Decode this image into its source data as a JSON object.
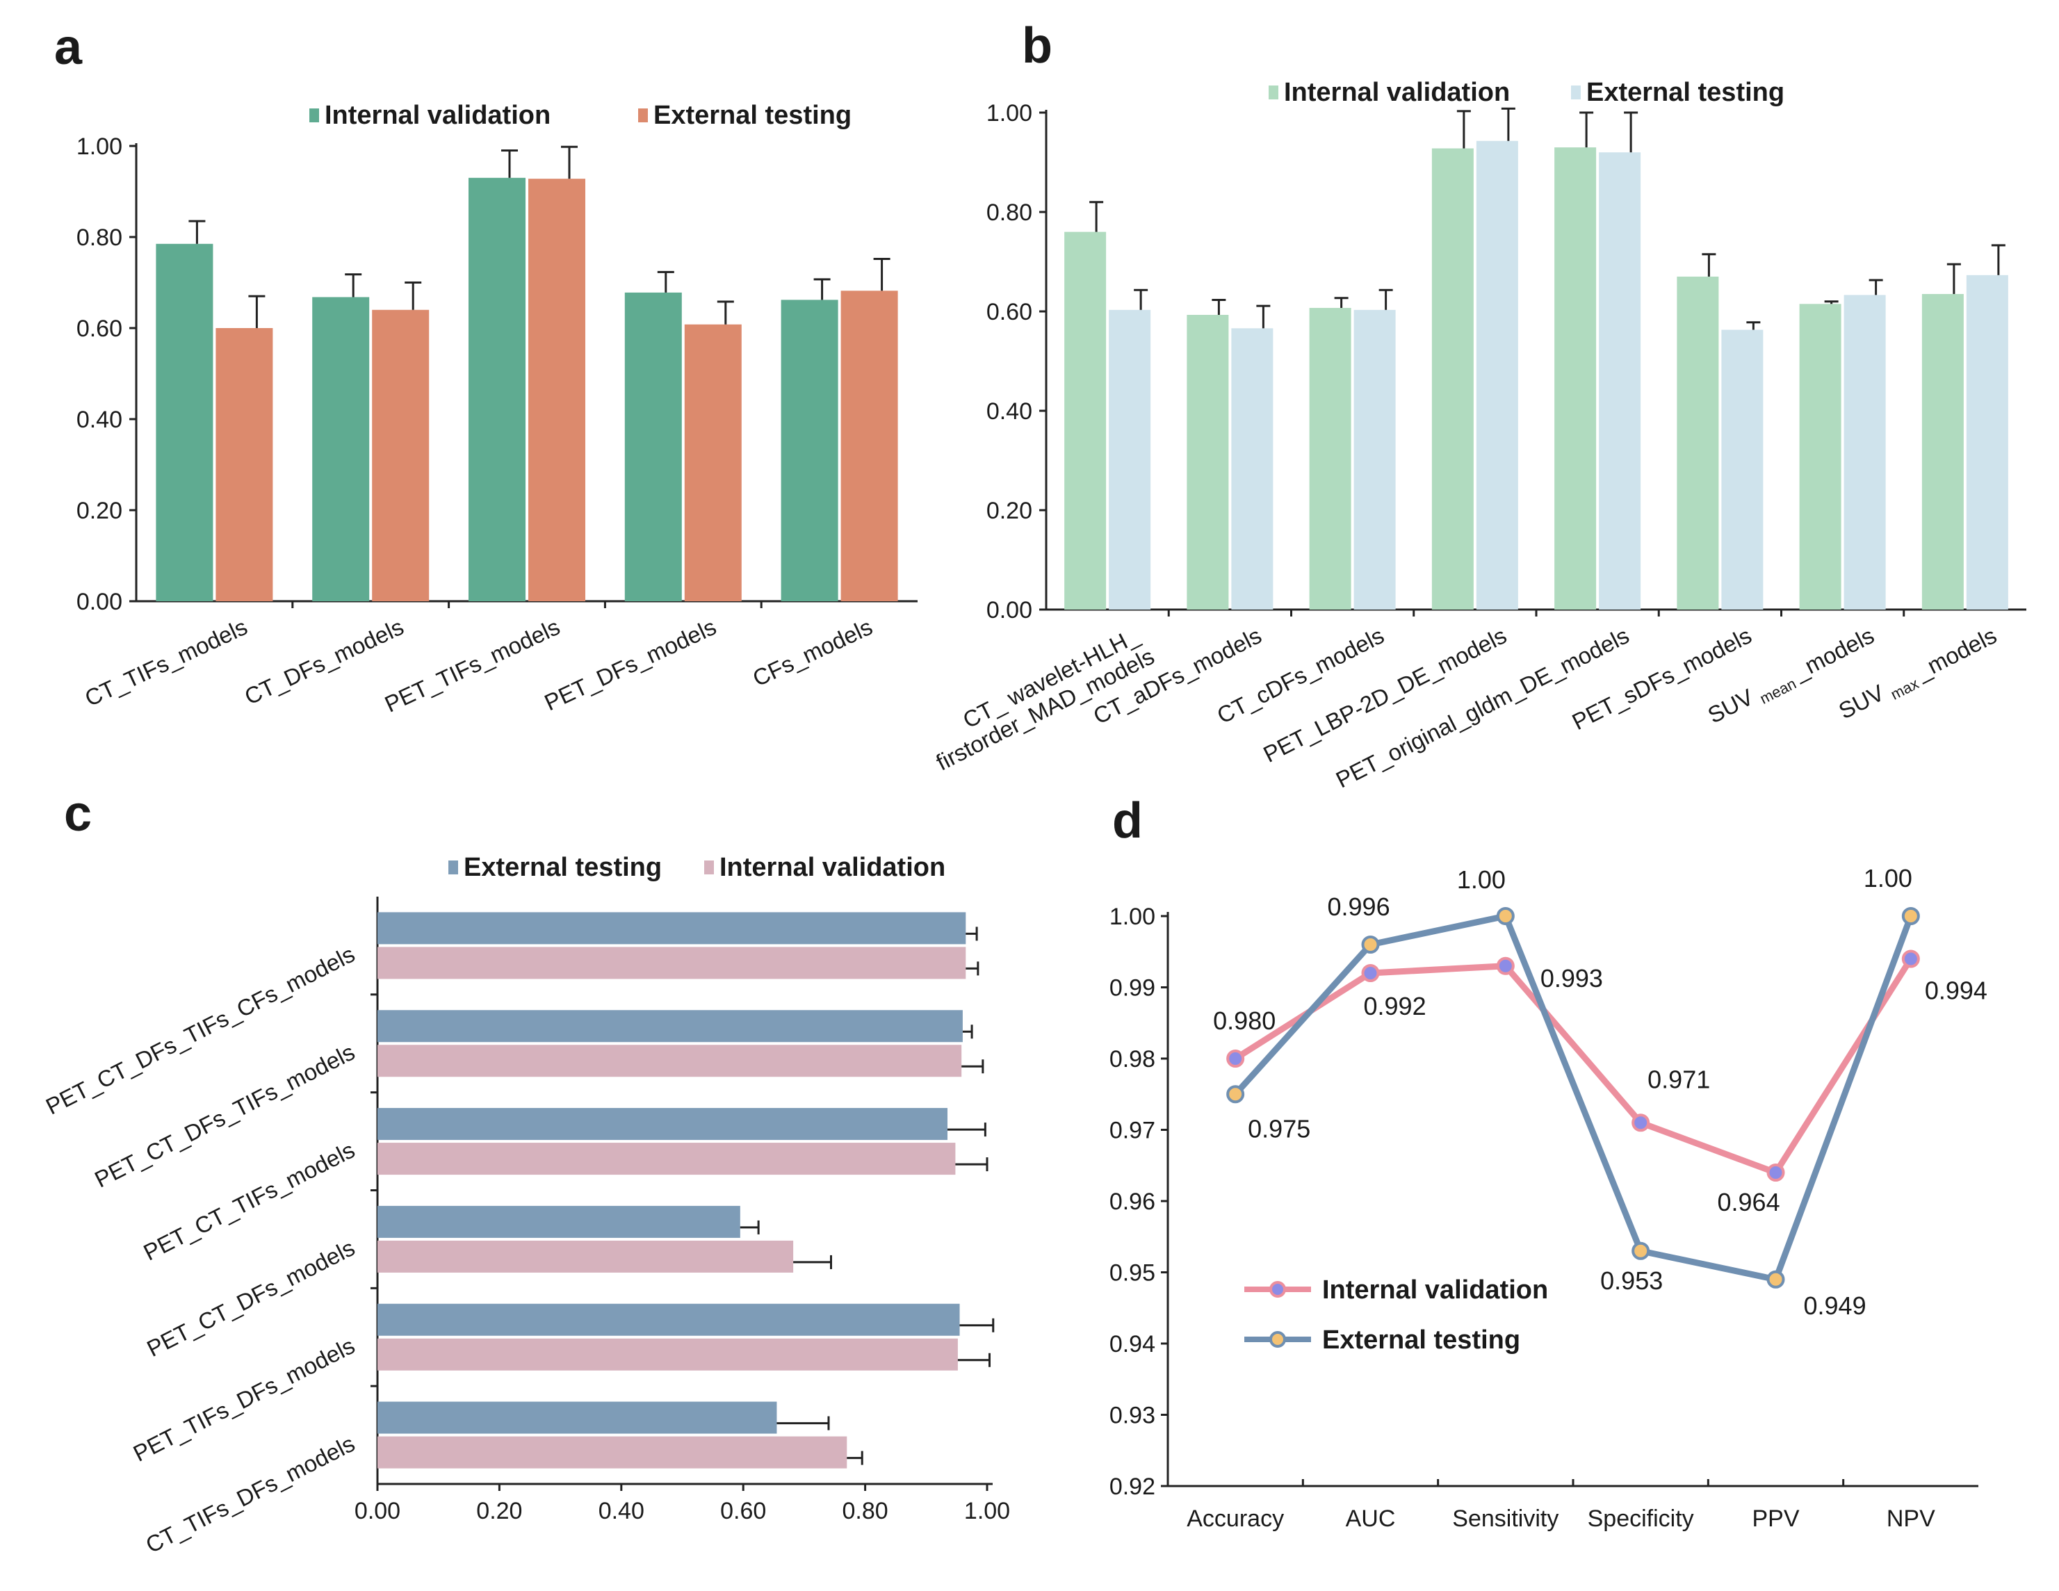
{
  "chart_data": [
    {
      "panel": "a",
      "type": "bar",
      "orientation": "vertical",
      "categories": [
        "CT_TIFs_models",
        "CT_DFs_models",
        "PET_TIFs_models",
        "PET_DFs_models",
        "CFs_models"
      ],
      "series": [
        {
          "name": "Internal validation",
          "color": "#5fab91",
          "values": [
            0.785,
            0.668,
            0.93,
            0.678,
            0.662
          ],
          "errors": [
            0.05,
            0.05,
            0.06,
            0.045,
            0.045
          ]
        },
        {
          "name": "External testing",
          "color": "#dc8a6d",
          "values": [
            0.6,
            0.64,
            0.928,
            0.608,
            0.682
          ],
          "errors": [
            0.07,
            0.06,
            0.07,
            0.05,
            0.07
          ]
        }
      ],
      "yticks": [
        "0.00",
        "0.20",
        "0.40",
        "0.60",
        "0.80",
        "1.00"
      ],
      "ylim": [
        0,
        1.0
      ],
      "xlabel": "",
      "ylabel": "",
      "legend": "top"
    },
    {
      "panel": "b",
      "type": "bar",
      "orientation": "vertical",
      "categories": [
        "CT_ wavelet-HLH_ firstorder_MAD_models",
        "CT_aDFs_models",
        "CT_cDFs_models",
        "PET_LBP-2D_DE_models",
        "PET_original_gldm_DE_models",
        "PET_sDFs_models",
        "SUV mean _models",
        "SUV max _models"
      ],
      "category_lines": [
        [
          {
            "t": "CT_ wavelet-HLH_"
          },
          {
            "t": "firstorder_MAD_models"
          }
        ],
        [
          {
            "t": "CT_aDFs_models"
          }
        ],
        [
          {
            "t": "CT_cDFs_models"
          }
        ],
        [
          {
            "t": "PET_LBP-2D_DE_models"
          }
        ],
        [
          {
            "t": "PET_original_gldm_DE_models"
          }
        ],
        [
          {
            "t": "PET_sDFs_models"
          }
        ],
        [
          {
            "t": "SUV",
            "sub": "mean",
            "tail": "_models"
          }
        ],
        [
          {
            "t": "SUV",
            "sub": "max",
            "tail": "_models"
          }
        ]
      ],
      "series": [
        {
          "name": "Internal validation",
          "color": "#b0dbbf",
          "values": [
            0.76,
            0.593,
            0.607,
            0.928,
            0.93,
            0.67,
            0.615,
            0.635
          ],
          "errors": [
            0.06,
            0.03,
            0.02,
            0.075,
            0.07,
            0.045,
            0.005,
            0.06
          ]
        },
        {
          "name": "External testing",
          "color": "#cfe3ec",
          "values": [
            0.603,
            0.566,
            0.603,
            0.943,
            0.92,
            0.563,
            0.633,
            0.673
          ],
          "errors": [
            0.04,
            0.045,
            0.04,
            0.065,
            0.08,
            0.015,
            0.03,
            0.06
          ]
        }
      ],
      "yticks": [
        "0.00",
        "0.20",
        "0.40",
        "0.60",
        "0.80",
        "1.00"
      ],
      "ylim": [
        0,
        1.0
      ],
      "xlabel": "",
      "ylabel": "",
      "legend": "top"
    },
    {
      "panel": "c",
      "type": "bar",
      "orientation": "horizontal",
      "categories": [
        "PET_CT_DFs_TIFs_CFs_models",
        "PET_CT_DFs_TIFs_models",
        "PET_CT_TIFs_models",
        "PET_CT_DFs_models",
        "PET_TIFs_DFs_models",
        "CT_TIFs_DFs_models"
      ],
      "series": [
        {
          "name": "External testing",
          "color": "#7e9cb7",
          "values": [
            0.965,
            0.96,
            0.935,
            0.595,
            0.955,
            0.655
          ],
          "errors": [
            0.018,
            0.015,
            0.062,
            0.03,
            0.055,
            0.085
          ]
        },
        {
          "name": "Internal validation",
          "color": "#d6b2bd",
          "values": [
            0.965,
            0.958,
            0.948,
            0.682,
            0.952,
            0.77
          ],
          "errors": [
            0.02,
            0.035,
            0.052,
            0.062,
            0.052,
            0.025
          ]
        }
      ],
      "xticks": [
        "0.00",
        "0.20",
        "0.40",
        "0.60",
        "0.80",
        "1.00"
      ],
      "xlim": [
        0,
        1.0
      ],
      "xlabel": "",
      "ylabel": "",
      "legend": "top"
    },
    {
      "panel": "d",
      "type": "line",
      "categories": [
        "Accuracy",
        "AUC",
        "Sensitivity",
        "Specificity",
        "PPV",
        "NPV"
      ],
      "series": [
        {
          "name": "Internal validation",
          "color": "#ec8f9e",
          "marker_fill": "#8c8ce6",
          "values": [
            0.98,
            0.992,
            0.993,
            0.971,
            0.964,
            0.994
          ],
          "labels": [
            "0.980",
            "0.992",
            "0.993",
            "0.971",
            "0.964",
            "0.994"
          ]
        },
        {
          "name": "External testing",
          "color": "#6f8fb1",
          "marker_fill": "#f4c273",
          "values": [
            0.975,
            0.996,
            1.0,
            0.953,
            0.949,
            1.0
          ],
          "labels": [
            "0.975",
            "0.996",
            "1.00",
            "0.953",
            "0.949",
            "1.00"
          ]
        }
      ],
      "yticks": [
        "0.92",
        "0.93",
        "0.94",
        "0.95",
        "0.96",
        "0.97",
        "0.98",
        "0.99",
        "1.00"
      ],
      "ylim": [
        0.92,
        1.0
      ],
      "xlabel": "",
      "ylabel": "",
      "legend": "lower-left"
    }
  ]
}
